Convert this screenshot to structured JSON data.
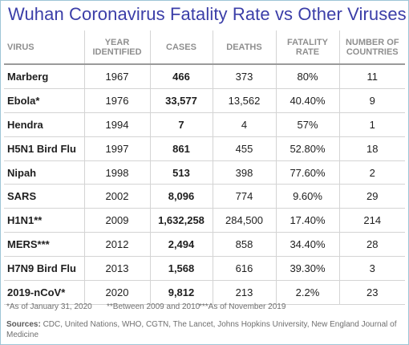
{
  "title": "Wuhan Coronavirus Fatality Rate vs Other Viruses",
  "chart_data": {
    "type": "table",
    "columns": [
      "VIRUS",
      "YEAR IDENTIFIED",
      "CASES",
      "DEATHS",
      "FATALITY RATE",
      "NUMBER OF COUNTRIES"
    ],
    "rows": [
      {
        "virus": "Marberg",
        "year": "1967",
        "cases": "466",
        "deaths": "373",
        "rate": "80%",
        "countries": "11"
      },
      {
        "virus": "Ebola*",
        "year": "1976",
        "cases": "33,577",
        "deaths": "13,562",
        "rate": "40.40%",
        "countries": "9"
      },
      {
        "virus": "Hendra",
        "year": "1994",
        "cases": "7",
        "deaths": "4",
        "rate": "57%",
        "countries": "1"
      },
      {
        "virus": "H5N1 Bird Flu",
        "year": "1997",
        "cases": "861",
        "deaths": "455",
        "rate": "52.80%",
        "countries": "18"
      },
      {
        "virus": "Nipah",
        "year": "1998",
        "cases": "513",
        "deaths": "398",
        "rate": "77.60%",
        "countries": "2"
      },
      {
        "virus": "SARS",
        "year": "2002",
        "cases": "8,096",
        "deaths": "774",
        "rate": "9.60%",
        "countries": "29"
      },
      {
        "virus": "H1N1**",
        "year": "2009",
        "cases": "1,632,258",
        "deaths": "284,500",
        "rate": "17.40%",
        "countries": "214"
      },
      {
        "virus": "MERS***",
        "year": "2012",
        "cases": "2,494",
        "deaths": "858",
        "rate": "34.40%",
        "countries": "28"
      },
      {
        "virus": "H7N9 Bird Flu",
        "year": "2013",
        "cases": "1,568",
        "deaths": "616",
        "rate": "39.30%",
        "countries": "3"
      },
      {
        "virus": "2019-nCoV*",
        "year": "2020",
        "cases": "9,812",
        "deaths": "213",
        "rate": "2.2%",
        "countries": "23"
      }
    ]
  },
  "footnotes": {
    "note1": "*As of January 31, 2020",
    "note2": "**Between 2009 and 2010",
    "note3": "***As of November 2019"
  },
  "sources": {
    "label": "Sources:",
    "text": "CDC, United Nations, WHO, CGTN, The Lancet, Johns Hopkins University, New England Journal of Medicine"
  },
  "colors": {
    "title": "#3b3ea8",
    "header_text": "#8f8f8f",
    "frame_border": "#9ec5d6"
  }
}
